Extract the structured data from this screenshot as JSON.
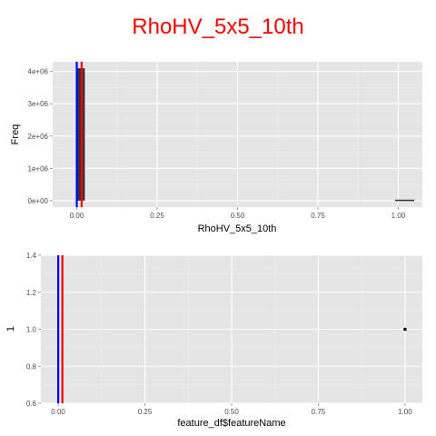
{
  "title": "RhoHV_5x5_10th",
  "colors": {
    "title": "#ff0000",
    "panel_bg": "#e5e5e5",
    "grid_major": "#ffffff",
    "grid_minor": "#f0f0f0",
    "bar": "#333333",
    "point": "#000000",
    "vline_blue": "#0000ff",
    "vline_red": "#ff0000"
  },
  "chart_data": [
    {
      "type": "bar",
      "subtype": "histogram",
      "xlabel": "RhoHV_5x5_10th",
      "ylabel": "Freq",
      "xlim": [
        -0.075,
        1.075
      ],
      "ylim": [
        -200000,
        4300000
      ],
      "x_ticks": [
        0,
        0.25,
        0.5,
        0.75,
        1
      ],
      "x_tick_labels": [
        "0.00",
        "0.25",
        "0.50",
        "0.75",
        "1.00"
      ],
      "y_ticks": [
        0,
        1000000,
        2000000,
        3000000,
        4000000
      ],
      "y_tick_labels": [
        "0e+00",
        "1e+06",
        "2e+06",
        "3e+06",
        "4e+06"
      ],
      "grid": true,
      "bins": [
        {
          "x_start": 0.0,
          "x_end": 0.025,
          "count": 4100000
        },
        {
          "x_start": 0.99,
          "x_end": 1.05,
          "count": 30000
        }
      ],
      "vlines": [
        {
          "x": 0.0,
          "color": "blue"
        },
        {
          "x": 0.015,
          "color": "red"
        }
      ]
    },
    {
      "type": "scatter",
      "xlabel": "feature_df$featureName",
      "ylabel": "1",
      "xlim": [
        -0.05,
        1.05
      ],
      "ylim": [
        0.6,
        1.4
      ],
      "x_ticks": [
        0,
        0.25,
        0.5,
        0.75,
        1
      ],
      "x_tick_labels": [
        "0.00",
        "0.25",
        "0.50",
        "0.75",
        "1.00"
      ],
      "y_ticks": [
        0.6,
        0.8,
        1.0,
        1.2,
        1.4
      ],
      "y_tick_labels": [
        "0.6",
        "0.8",
        "1.0",
        "1.2",
        "1.4"
      ],
      "grid": true,
      "points": [
        {
          "x": 1.0,
          "y": 1.0
        }
      ],
      "vlines": [
        {
          "x": 0.0,
          "color": "blue"
        },
        {
          "x": 0.012,
          "color": "red"
        }
      ]
    }
  ]
}
